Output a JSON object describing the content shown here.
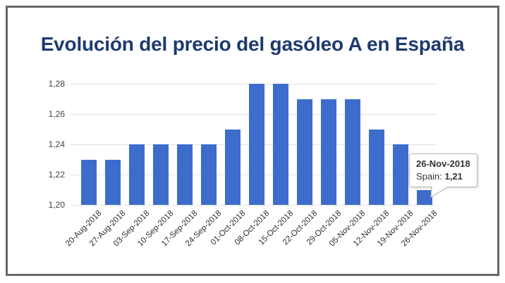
{
  "title": "Evolución del precio del gasóleo A en España",
  "colors": {
    "bar": "#3d6ccd",
    "title": "#1d3a6e",
    "gridline": "#e0e0e0",
    "frame_border": "#676767",
    "axis_text": "#3f3f3f"
  },
  "chart_data": {
    "type": "bar",
    "title": "Evolución del precio del gasóleo A en España",
    "categories": [
      "20-Aug-2018",
      "27-Aug-2018",
      "03-Sep-2018",
      "10-Sep-2018",
      "17-Sep-2018",
      "24-Sep-2018",
      "01-Oct-2018",
      "08-Oct-2018",
      "15-Oct-2018",
      "22-Oct-2018",
      "29-Oct-2018",
      "05-Nov-2018",
      "12-Nov-2018",
      "19-Nov-2018",
      "26-Nov-2018"
    ],
    "series": [
      {
        "name": "Spain",
        "values": [
          1.23,
          1.23,
          1.24,
          1.24,
          1.24,
          1.24,
          1.25,
          1.28,
          1.28,
          1.27,
          1.27,
          1.27,
          1.25,
          1.24,
          1.21
        ]
      }
    ],
    "xlabel": "",
    "ylabel": "",
    "ylim": [
      1.2,
      1.28
    ],
    "y_ticks": [
      1.28,
      1.26,
      1.24,
      1.22,
      1.2
    ],
    "y_tick_labels": [
      "1,28",
      "1,26",
      "1,24",
      "1,22",
      "1,20"
    ],
    "grid": true,
    "legend": "none",
    "highlighted_point": {
      "category": "26-Nov-2018",
      "series": "Spain",
      "value_label": "1,21"
    }
  },
  "tooltip": {
    "date": "26-Nov-2018",
    "series_label": "Spain:",
    "value": "1,21"
  }
}
